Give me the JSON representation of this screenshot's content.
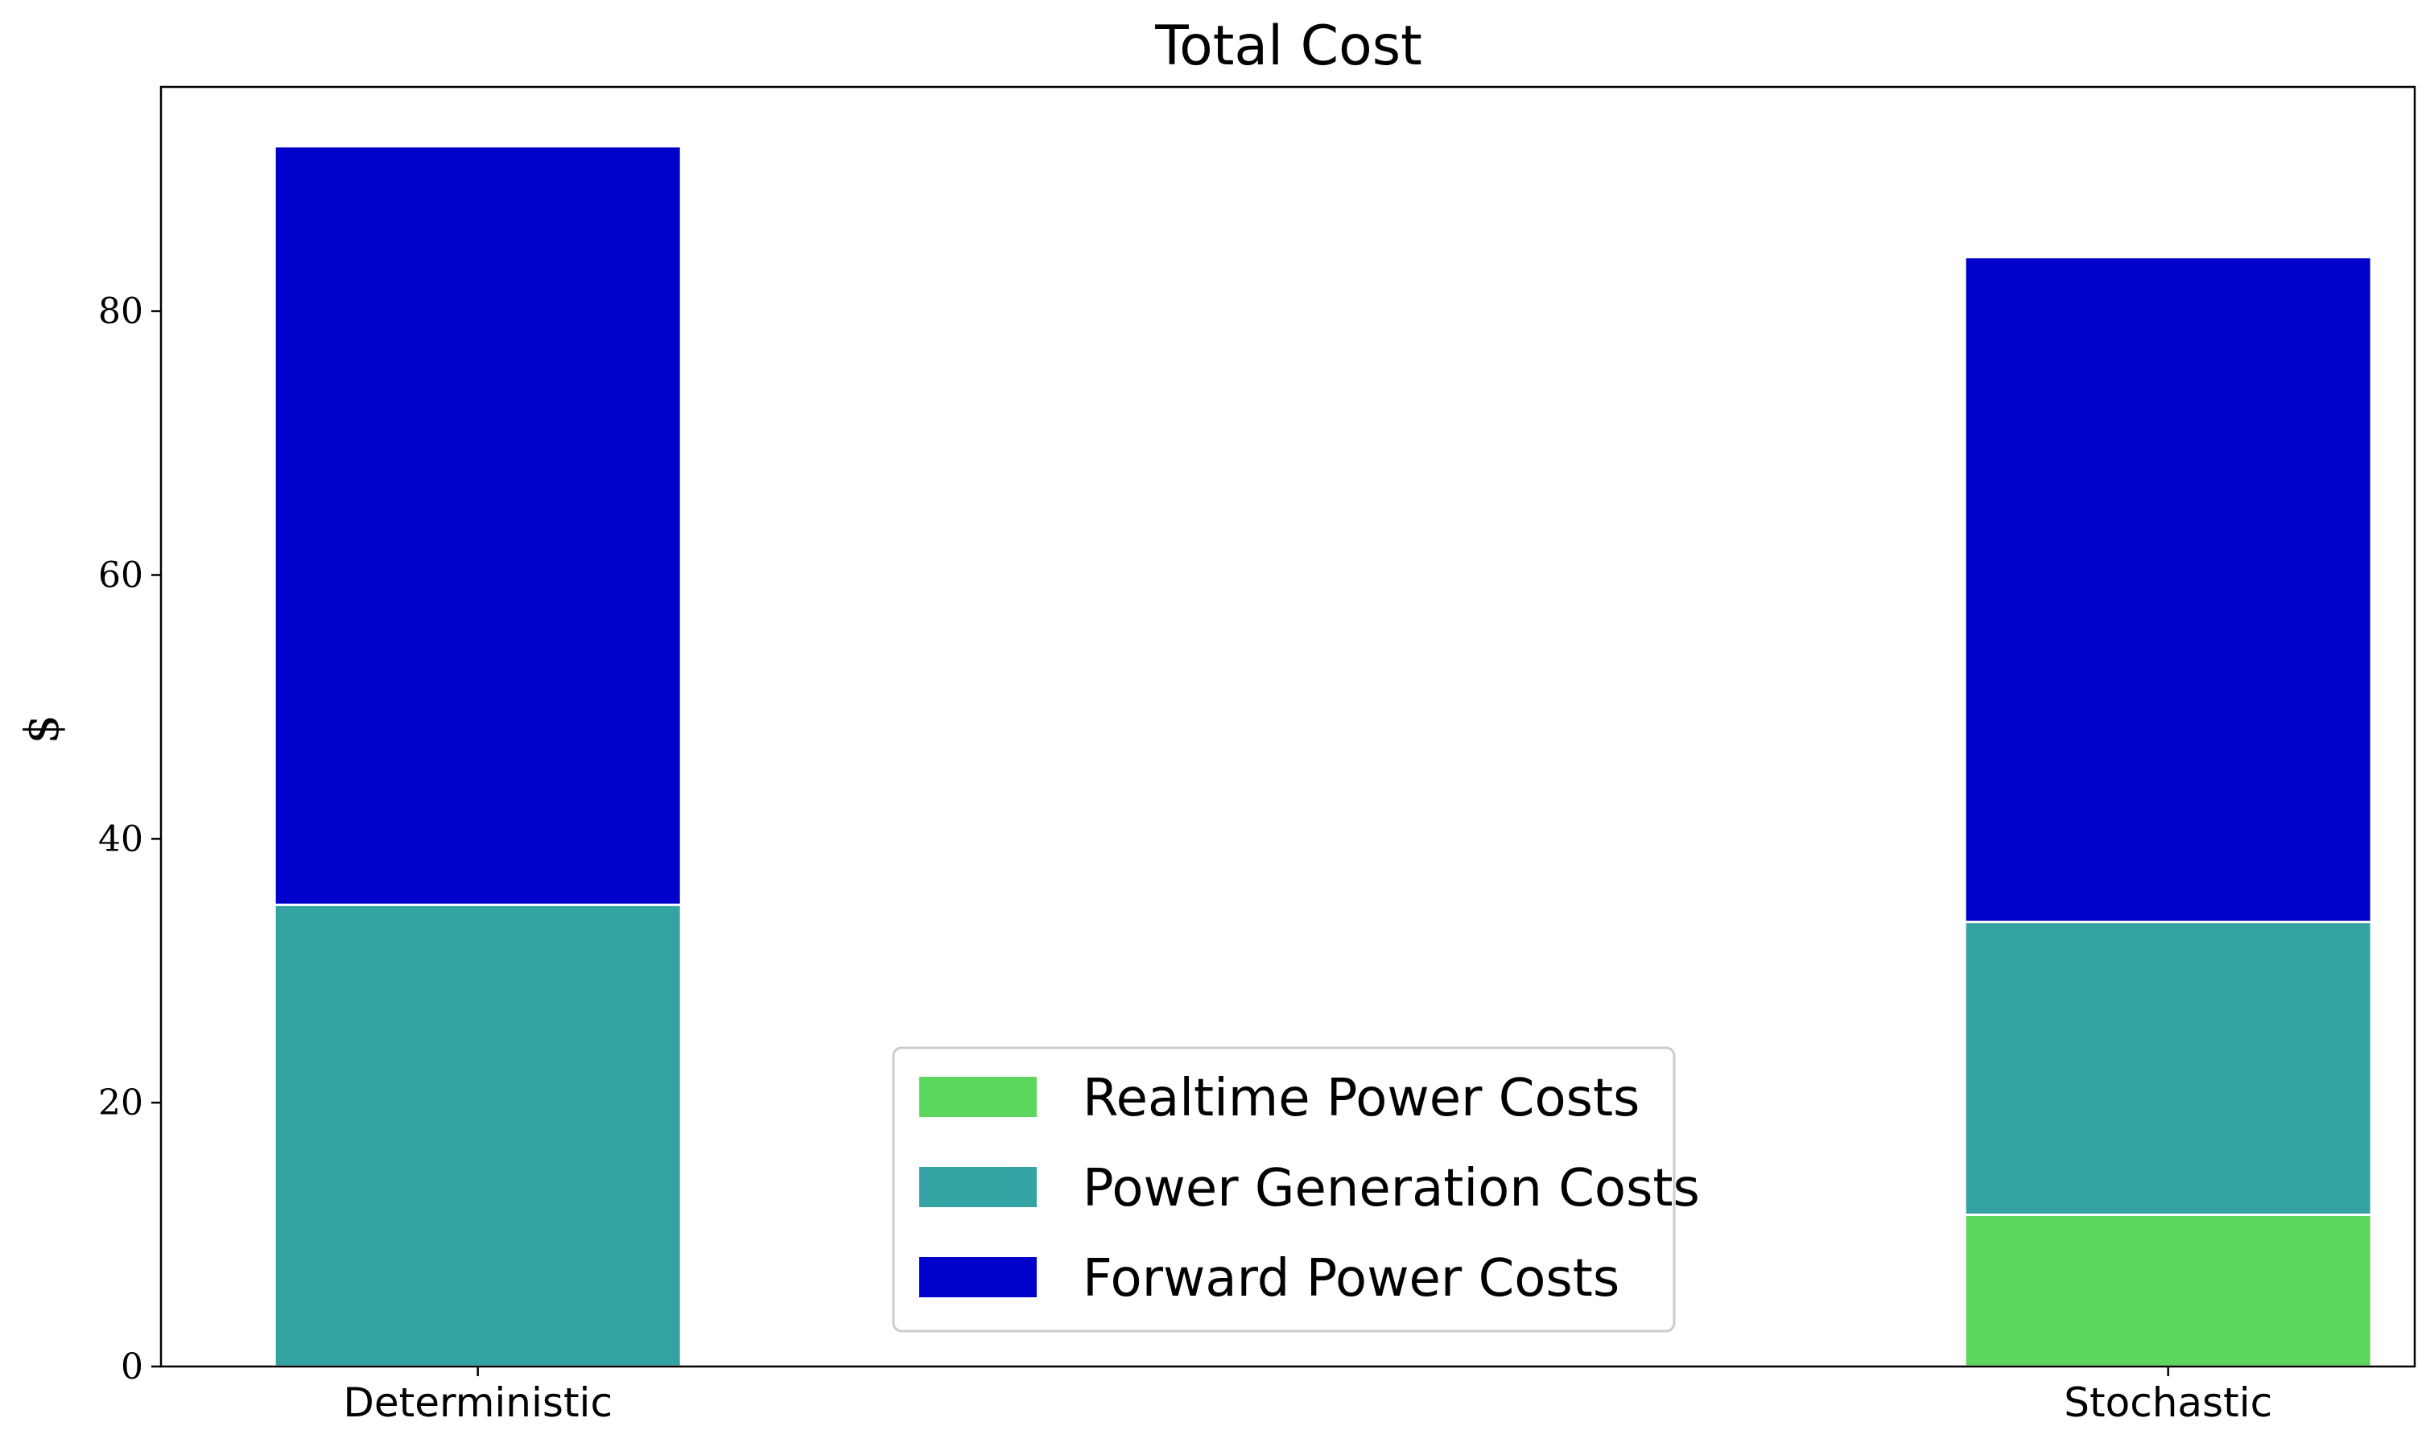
{
  "chart_data": {
    "type": "bar",
    "stacked": true,
    "title": "Total Cost",
    "xlabel": "",
    "ylabel": "$",
    "categories": [
      "Deterministic",
      "Stochastic"
    ],
    "ylim": [
      0,
      97
    ],
    "yticks": [
      0,
      20,
      40,
      60,
      80
    ],
    "grid": false,
    "legend_position": "bottom-center",
    "series": [
      {
        "name": "Realtime Power Costs",
        "color": "#5cd65c",
        "values": [
          0,
          11.5
        ]
      },
      {
        "name": "Power Generation Costs",
        "color": "#33a3a3",
        "values": [
          35.0,
          22.2
        ]
      },
      {
        "name": "Forward Power Costs",
        "color": "#0000cc",
        "values": [
          57.5,
          50.4
        ]
      }
    ]
  }
}
